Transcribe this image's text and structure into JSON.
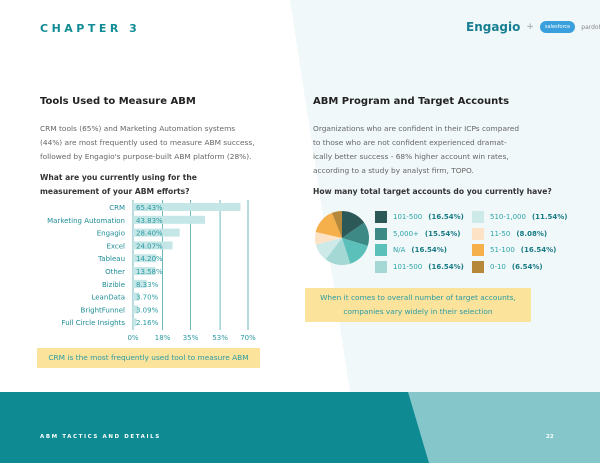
{
  "header": {
    "chapter": "CHAPTER 3",
    "logo_engagio": "Engagio",
    "logo_plus": "+",
    "logo_salesforce": "salesforce",
    "logo_pardot": "pardot"
  },
  "left": {
    "title": "Tools Used to Measure ABM",
    "paragraph": [
      "CRM tools (65%) and Marketing Automation systems",
      "(44%) are most frequently used to measure ABM success,",
      "followed by Engagio's purpose-built ABM platform (28%)."
    ],
    "question": [
      "What are you currently using for the",
      "measurement of your ABM efforts?"
    ],
    "callout": "CRM is the most frequently used tool to measure ABM"
  },
  "right": {
    "title": "ABM Program and Target Accounts",
    "paragraph": [
      "Organizations who are confident in their ICPs compared",
      "to those who are not confident experienced dramat-",
      "ically better success - 68% higher account win rates,",
      "according to a study by analyst firm, TOPO."
    ],
    "question": "How many total target accounts do you currently have?",
    "callout": [
      "When it comes to overall number of target accounts,",
      "companies vary widely in their selection"
    ]
  },
  "chart_data": [
    {
      "type": "bar",
      "orientation": "horizontal",
      "categories": [
        "CRM",
        "Marketing Automation",
        "Engagio",
        "Excel",
        "Tableau",
        "Other",
        "Bizible",
        "LeanData",
        "BrightFunnel",
        "Full Circle Insights"
      ],
      "values": [
        65.43,
        43.83,
        28.4,
        24.07,
        14.2,
        13.58,
        8.33,
        3.7,
        3.09,
        2.16
      ],
      "labels": [
        "65.43%",
        "43.83%",
        "28.40%",
        "24.07%",
        "14.20%",
        "13.58%",
        "8.33%",
        "3.70%",
        "3.09%",
        "2.16%"
      ],
      "xticks": [
        0,
        18,
        35,
        53,
        70
      ],
      "xtick_labels": [
        "0%",
        "18%",
        "35%",
        "53%",
        "70%"
      ],
      "xlim": [
        0,
        70
      ],
      "grid": true,
      "color": "#c4e6e6"
    },
    {
      "type": "pie",
      "slices": [
        {
          "label": "101-500",
          "value_label": "(16.54%)",
          "value": 16.54,
          "color": "#2c5958"
        },
        {
          "label": "5,000+",
          "value_label": "(15.54%)",
          "value": 15.54,
          "color": "#3d8985"
        },
        {
          "label": "N/A",
          "value_label": "(16.54%)",
          "value": 16.54,
          "color": "#5bbfba"
        },
        {
          "label": "101-500",
          "value_label": "(16.54%)",
          "value": 16.54,
          "color": "#a4d8d5"
        },
        {
          "label": "510-1,000",
          "value_label": "(11.54%)",
          "value": 11.54,
          "color": "#cdeae8"
        },
        {
          "label": "11-50",
          "value_label": "(8.08%)",
          "value": 8.08,
          "color": "#fde2c6"
        },
        {
          "label": "51-100",
          "value_label": "(16.54%)",
          "value": 16.54,
          "color": "#f5b04b"
        },
        {
          "label": "0-10",
          "value_label": "(6.54%)",
          "value": 6.54,
          "color": "#b5883a"
        }
      ],
      "legend": "right"
    }
  ],
  "footer": {
    "text": "ABM TACTICS AND DETAILS",
    "page": "22"
  },
  "colors": {
    "teal": "#0e8a93",
    "teal_light": "#84c6c9",
    "callout": "#fbe39c"
  }
}
